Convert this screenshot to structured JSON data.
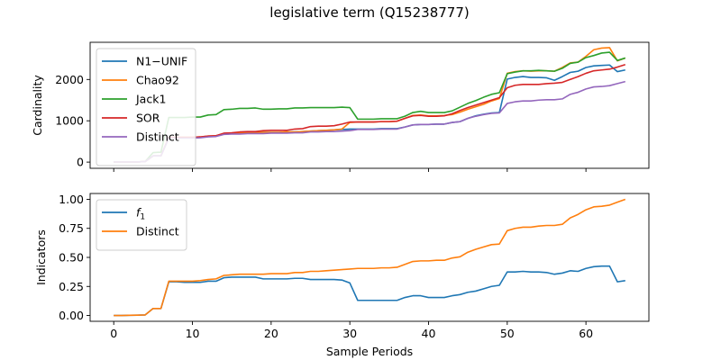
{
  "figure": {
    "title": "legislative term (Q15238777)"
  },
  "chart_data": [
    {
      "type": "line",
      "ylabel": "Cardinality",
      "xlim": [
        -3,
        68
      ],
      "ylim": [
        -150,
        2900
      ],
      "xticks": [
        0,
        10,
        20,
        30,
        40,
        50,
        60
      ],
      "yticks": [
        0,
        1000,
        2000
      ],
      "xtick_labels_visible": false,
      "legend": "top-left",
      "series": [
        {
          "name": "N1−UNIF",
          "color": "#1f77b4",
          "x": [
            0,
            1,
            2,
            3,
            4,
            5,
            6,
            7,
            8,
            9,
            10,
            11,
            12,
            13,
            14,
            15,
            16,
            17,
            18,
            19,
            20,
            21,
            22,
            23,
            24,
            25,
            26,
            27,
            28,
            29,
            30,
            31,
            32,
            33,
            34,
            35,
            36,
            37,
            38,
            39,
            40,
            41,
            42,
            43,
            44,
            45,
            46,
            47,
            48,
            49,
            50,
            51,
            52,
            53,
            54,
            55,
            56,
            57,
            58,
            59,
            60,
            61,
            62,
            63,
            64,
            65
          ],
          "y": [
            5,
            5,
            5,
            5,
            15,
            150,
            150,
            590,
            590,
            590,
            590,
            600,
            620,
            630,
            680,
            690,
            700,
            720,
            720,
            720,
            720,
            720,
            730,
            730,
            740,
            750,
            760,
            770,
            780,
            790,
            800,
            800,
            800,
            800,
            810,
            810,
            810,
            850,
            900,
            910,
            910,
            920,
            920,
            960,
            980,
            1060,
            1120,
            1160,
            1190,
            1200,
            2010,
            2050,
            2070,
            2050,
            2050,
            2040,
            1980,
            2070,
            2170,
            2200,
            2290,
            2330,
            2340,
            2350,
            2190,
            2230
          ]
        },
        {
          "name": "Chao92",
          "color": "#ff7f0e",
          "x": [
            0,
            1,
            2,
            3,
            4,
            5,
            6,
            7,
            8,
            9,
            10,
            11,
            12,
            13,
            14,
            15,
            16,
            17,
            18,
            19,
            20,
            21,
            22,
            23,
            24,
            25,
            26,
            27,
            28,
            29,
            30,
            31,
            32,
            33,
            34,
            35,
            36,
            37,
            38,
            39,
            40,
            41,
            42,
            43,
            44,
            45,
            46,
            47,
            48,
            49,
            50,
            51,
            52,
            53,
            54,
            55,
            56,
            57,
            58,
            59,
            60,
            61,
            62,
            63,
            64,
            65
          ],
          "y": [
            5,
            5,
            5,
            5,
            15,
            150,
            150,
            600,
            600,
            600,
            600,
            610,
            630,
            640,
            680,
            690,
            700,
            720,
            720,
            720,
            720,
            720,
            730,
            730,
            740,
            750,
            760,
            770,
            780,
            800,
            960,
            970,
            970,
            970,
            980,
            980,
            990,
            1060,
            1130,
            1140,
            1120,
            1120,
            1130,
            1150,
            1210,
            1280,
            1340,
            1400,
            1480,
            1540,
            2150,
            2190,
            2210,
            2200,
            2210,
            2210,
            2200,
            2290,
            2400,
            2420,
            2560,
            2720,
            2760,
            2770,
            2450,
            2520
          ]
        },
        {
          "name": "Jack1",
          "color": "#2ca02c",
          "x": [
            0,
            1,
            2,
            3,
            4,
            5,
            6,
            7,
            8,
            9,
            10,
            11,
            12,
            13,
            14,
            15,
            16,
            17,
            18,
            19,
            20,
            21,
            22,
            23,
            24,
            25,
            26,
            27,
            28,
            29,
            30,
            31,
            32,
            33,
            34,
            35,
            36,
            37,
            38,
            39,
            40,
            41,
            42,
            43,
            44,
            45,
            46,
            47,
            48,
            49,
            50,
            51,
            52,
            53,
            54,
            55,
            56,
            57,
            58,
            59,
            60,
            61,
            62,
            63,
            64,
            65
          ],
          "y": [
            5,
            5,
            5,
            5,
            15,
            230,
            240,
            1080,
            1080,
            1080,
            1090,
            1090,
            1140,
            1150,
            1270,
            1280,
            1300,
            1300,
            1310,
            1280,
            1280,
            1290,
            1290,
            1310,
            1310,
            1320,
            1320,
            1320,
            1320,
            1330,
            1320,
            1040,
            1040,
            1040,
            1050,
            1050,
            1050,
            1110,
            1200,
            1230,
            1200,
            1200,
            1200,
            1240,
            1330,
            1420,
            1490,
            1570,
            1640,
            1680,
            2140,
            2180,
            2210,
            2210,
            2220,
            2210,
            2200,
            2270,
            2390,
            2420,
            2530,
            2580,
            2640,
            2660,
            2460,
            2520
          ]
        },
        {
          "name": "SOR",
          "color": "#d62728",
          "x": [
            0,
            1,
            2,
            3,
            4,
            5,
            6,
            7,
            8,
            9,
            10,
            11,
            12,
            13,
            14,
            15,
            16,
            17,
            18,
            19,
            20,
            21,
            22,
            23,
            24,
            25,
            26,
            27,
            28,
            29,
            30,
            31,
            32,
            33,
            34,
            35,
            36,
            37,
            38,
            39,
            40,
            41,
            42,
            43,
            44,
            45,
            46,
            47,
            48,
            49,
            50,
            51,
            52,
            53,
            54,
            55,
            56,
            57,
            58,
            59,
            60,
            61,
            62,
            63,
            64,
            65
          ],
          "y": [
            5,
            5,
            5,
            5,
            15,
            150,
            150,
            600,
            600,
            600,
            600,
            610,
            630,
            640,
            700,
            710,
            730,
            740,
            740,
            760,
            770,
            770,
            770,
            800,
            810,
            860,
            870,
            870,
            880,
            920,
            970,
            970,
            970,
            970,
            980,
            980,
            990,
            1060,
            1120,
            1130,
            1110,
            1110,
            1120,
            1170,
            1250,
            1320,
            1380,
            1440,
            1500,
            1560,
            1800,
            1860,
            1880,
            1880,
            1880,
            1900,
            1910,
            1930,
            2000,
            2070,
            2150,
            2210,
            2230,
            2250,
            2300,
            2360
          ]
        },
        {
          "name": "Distinct",
          "color": "#9467bd",
          "x": [
            0,
            1,
            2,
            3,
            4,
            5,
            6,
            7,
            8,
            9,
            10,
            11,
            12,
            13,
            14,
            15,
            16,
            17,
            18,
            19,
            20,
            21,
            22,
            23,
            24,
            25,
            26,
            27,
            28,
            29,
            30,
            31,
            32,
            33,
            34,
            35,
            36,
            37,
            38,
            39,
            40,
            41,
            42,
            43,
            44,
            45,
            46,
            47,
            48,
            49,
            50,
            51,
            52,
            53,
            54,
            55,
            56,
            57,
            58,
            59,
            60,
            61,
            62,
            63,
            64,
            65
          ],
          "y": [
            5,
            5,
            5,
            5,
            15,
            150,
            150,
            580,
            580,
            580,
            580,
            590,
            610,
            620,
            670,
            680,
            680,
            690,
            690,
            690,
            700,
            700,
            700,
            710,
            710,
            730,
            730,
            740,
            740,
            750,
            760,
            790,
            790,
            790,
            800,
            800,
            800,
            850,
            900,
            910,
            910,
            920,
            920,
            960,
            980,
            1060,
            1110,
            1150,
            1180,
            1190,
            1420,
            1460,
            1480,
            1480,
            1500,
            1510,
            1510,
            1530,
            1640,
            1690,
            1770,
            1820,
            1830,
            1850,
            1900,
            1950
          ]
        }
      ]
    },
    {
      "type": "line",
      "ylabel": "Indicators",
      "xlabel": "Sample Periods",
      "xlim": [
        -3,
        68
      ],
      "ylim": [
        -0.05,
        1.05
      ],
      "xticks": [
        0,
        10,
        20,
        30,
        40,
        50,
        60
      ],
      "xtick_labels": [
        "0",
        "10",
        "20",
        "30",
        "40",
        "50",
        "60"
      ],
      "yticks": [
        0.0,
        0.25,
        0.5,
        0.75,
        1.0
      ],
      "ytick_labels": [
        "0.00",
        "0.25",
        "0.50",
        "0.75",
        "1.00"
      ],
      "legend": "top-left",
      "series": [
        {
          "name": "f",
          "name_subscript": "1",
          "color": "#1f77b4",
          "x": [
            0,
            1,
            2,
            3,
            4,
            5,
            6,
            7,
            8,
            9,
            10,
            11,
            12,
            13,
            14,
            15,
            16,
            17,
            18,
            19,
            20,
            21,
            22,
            23,
            24,
            25,
            26,
            27,
            28,
            29,
            30,
            31,
            32,
            33,
            34,
            35,
            36,
            37,
            38,
            39,
            40,
            41,
            42,
            43,
            44,
            45,
            46,
            47,
            48,
            49,
            50,
            51,
            52,
            53,
            54,
            55,
            56,
            57,
            58,
            59,
            60,
            61,
            62,
            63,
            64,
            65
          ],
          "y": [
            0.0,
            0.0,
            0.002,
            0.003,
            0.005,
            0.06,
            0.06,
            0.29,
            0.29,
            0.285,
            0.285,
            0.285,
            0.295,
            0.295,
            0.325,
            0.33,
            0.33,
            0.33,
            0.33,
            0.315,
            0.315,
            0.315,
            0.315,
            0.32,
            0.32,
            0.31,
            0.31,
            0.31,
            0.31,
            0.305,
            0.28,
            0.13,
            0.13,
            0.13,
            0.13,
            0.13,
            0.13,
            0.155,
            0.17,
            0.17,
            0.155,
            0.155,
            0.155,
            0.17,
            0.18,
            0.2,
            0.21,
            0.23,
            0.25,
            0.26,
            0.375,
            0.375,
            0.38,
            0.375,
            0.375,
            0.37,
            0.355,
            0.365,
            0.385,
            0.38,
            0.405,
            0.42,
            0.425,
            0.425,
            0.29,
            0.3
          ]
        },
        {
          "name": "Distinct",
          "color": "#ff7f0e",
          "x": [
            0,
            1,
            2,
            3,
            4,
            5,
            6,
            7,
            8,
            9,
            10,
            11,
            12,
            13,
            14,
            15,
            16,
            17,
            18,
            19,
            20,
            21,
            22,
            23,
            24,
            25,
            26,
            27,
            28,
            29,
            30,
            31,
            32,
            33,
            34,
            35,
            36,
            37,
            38,
            39,
            40,
            41,
            42,
            43,
            44,
            45,
            46,
            47,
            48,
            49,
            50,
            51,
            52,
            53,
            54,
            55,
            56,
            57,
            58,
            59,
            60,
            61,
            62,
            63,
            64,
            65
          ],
          "y": [
            0.0,
            0.0,
            0.002,
            0.003,
            0.005,
            0.06,
            0.06,
            0.295,
            0.295,
            0.295,
            0.295,
            0.3,
            0.31,
            0.315,
            0.345,
            0.35,
            0.355,
            0.355,
            0.355,
            0.355,
            0.36,
            0.36,
            0.36,
            0.37,
            0.37,
            0.38,
            0.38,
            0.385,
            0.39,
            0.395,
            0.4,
            0.405,
            0.405,
            0.405,
            0.41,
            0.41,
            0.415,
            0.44,
            0.465,
            0.47,
            0.47,
            0.475,
            0.475,
            0.495,
            0.505,
            0.545,
            0.57,
            0.59,
            0.61,
            0.615,
            0.73,
            0.75,
            0.76,
            0.76,
            0.77,
            0.775,
            0.775,
            0.785,
            0.84,
            0.87,
            0.91,
            0.935,
            0.94,
            0.95,
            0.975,
            1.0
          ]
        }
      ]
    }
  ]
}
